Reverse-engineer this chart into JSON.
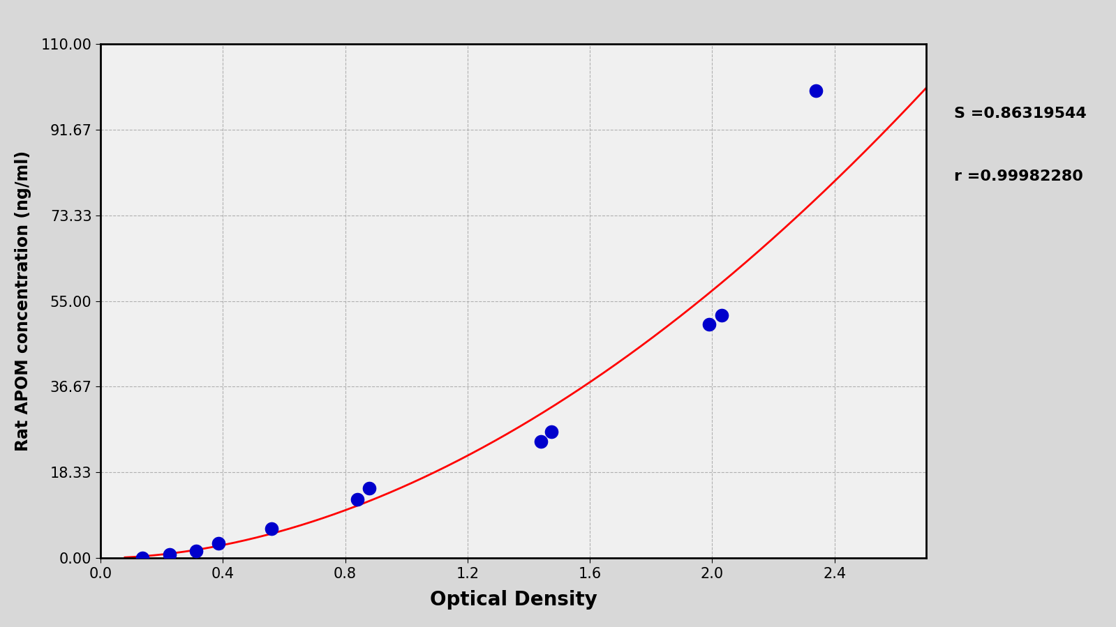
{
  "data_points_x": [
    0.137,
    0.227,
    0.312,
    0.385,
    0.56,
    0.84,
    0.878,
    1.44,
    1.475,
    1.99,
    2.03,
    2.34
  ],
  "data_points_y": [
    0.0,
    0.781,
    1.5625,
    3.125,
    6.25,
    12.5,
    15.0,
    25.0,
    27.0,
    50.0,
    52.0,
    100.0
  ],
  "S_value": "0.86319544",
  "r_value": "0.99982280",
  "xlabel": "Optical Density",
  "ylabel": "Rat APOM concentration (ng/ml)",
  "xlim": [
    0.0,
    2.7
  ],
  "ylim": [
    0.0,
    110.0
  ],
  "xticks": [
    0.0,
    0.4,
    0.8,
    1.2,
    1.6,
    2.0,
    2.4
  ],
  "xtick_labels": [
    "0.0",
    "0.4",
    "0.8",
    "1.2",
    "1.6",
    "2.0",
    "2.4"
  ],
  "yticks": [
    0.0,
    18.33,
    36.67,
    55.0,
    73.33,
    91.67,
    110.0
  ],
  "ytick_labels": [
    "0.00",
    "18.33",
    "36.67",
    "55.00",
    "73.33",
    "91.67",
    "110.00"
  ],
  "background_color": "#d8d8d8",
  "plot_background_color": "#f0f0f0",
  "curve_color": "#ff0000",
  "dot_color": "#0000cc",
  "grid_color": "#b0b0b0",
  "annotation_s": "S =0.86319544",
  "annotation_r": "r =0.99982280"
}
